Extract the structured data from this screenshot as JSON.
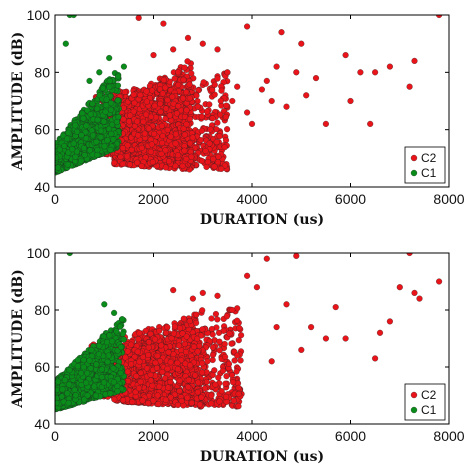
{
  "chart_data": [
    {
      "type": "scatter",
      "xlabel": "DURATION (us)",
      "ylabel": "AMPLITUDE (dB)",
      "xlim": [
        0,
        8000
      ],
      "ylim": [
        40,
        100
      ],
      "xticks": [
        0,
        2000,
        4000,
        6000,
        8000
      ],
      "yticks": [
        40,
        60,
        80,
        100
      ],
      "grid": false,
      "legend_position": "bottom-right",
      "series": [
        {
          "name": "C2",
          "color": "#e8141a",
          "points": [
            [
              7800,
              100
            ],
            [
              1700,
              99
            ],
            [
              2200,
              97
            ],
            [
              3900,
              96
            ],
            [
              4600,
              94
            ],
            [
              5000,
              90
            ],
            [
              6500,
              80
            ],
            [
              5300,
              78
            ],
            [
              5900,
              86
            ],
            [
              6800,
              82
            ],
            [
              7300,
              84
            ],
            [
              6200,
              80
            ],
            [
              7200,
              75
            ],
            [
              4500,
              82
            ],
            [
              3700,
              75
            ],
            [
              4400,
              70
            ],
            [
              5100,
              72
            ],
            [
              6000,
              70
            ],
            [
              4700,
              68
            ],
            [
              3900,
              66
            ],
            [
              5500,
              62
            ],
            [
              6400,
              62
            ],
            [
              3000,
              90
            ],
            [
              3300,
              88
            ],
            [
              2700,
              92
            ],
            [
              2400,
              88
            ],
            [
              2000,
              86
            ],
            [
              4300,
              77
            ],
            [
              3500,
              80
            ],
            [
              3600,
              70
            ],
            [
              2900,
              68
            ],
            [
              3200,
              64
            ],
            [
              4000,
              62
            ],
            [
              4200,
              74
            ],
            [
              4900,
              80
            ],
            [
              2500,
              80
            ]
          ],
          "dense_regions": [
            {
              "x_range": [
                800,
                3500
              ],
              "y_min": [
                52,
                46
              ],
              "y_max": [
                72,
                80
              ]
            },
            {
              "x_range": [
                1200,
                2800
              ],
              "y_min": [
                48,
                46
              ],
              "y_max": [
                68,
                85
              ]
            }
          ]
        },
        {
          "name": "C1",
          "color": "#0a8c1a",
          "points": [
            [
              300,
              100
            ],
            [
              380,
              100
            ],
            [
              220,
              90
            ],
            [
              1400,
              82
            ],
            [
              1100,
              85
            ],
            [
              900,
              80
            ],
            [
              700,
              77
            ]
          ],
          "dense_regions": [
            {
              "x_range": [
                0,
                1300
              ],
              "y_min": [
                45,
                54
              ],
              "y_max": [
                55,
                82
              ]
            }
          ]
        }
      ]
    },
    {
      "type": "scatter",
      "xlabel": "DURATION (us)",
      "ylabel": "AMPLITUDE (dB)",
      "xlim": [
        0,
        8000
      ],
      "ylim": [
        40,
        100
      ],
      "xticks": [
        0,
        2000,
        4000,
        6000,
        8000
      ],
      "yticks": [
        40,
        60,
        80,
        100
      ],
      "grid": false,
      "legend_position": "bottom-right",
      "series": [
        {
          "name": "C2",
          "color": "#e8141a",
          "points": [
            [
              7200,
              100
            ],
            [
              4900,
              99
            ],
            [
              4300,
              98
            ],
            [
              7300,
              86
            ],
            [
              7800,
              90
            ],
            [
              7400,
              84
            ],
            [
              7000,
              88
            ],
            [
              6800,
              76
            ],
            [
              6500,
              63
            ],
            [
              5700,
              81
            ],
            [
              6600,
              72
            ],
            [
              5200,
              74
            ],
            [
              5500,
              70
            ],
            [
              4500,
              74
            ],
            [
              4100,
              88
            ],
            [
              3900,
              92
            ],
            [
              3600,
              80
            ],
            [
              4700,
              82
            ],
            [
              3300,
              85
            ],
            [
              3000,
              86
            ],
            [
              2400,
              87
            ],
            [
              2800,
              84
            ],
            [
              5000,
              66
            ],
            [
              4400,
              62
            ],
            [
              3700,
              64
            ],
            [
              5900,
              70
            ]
          ],
          "dense_regions": [
            {
              "x_range": [
                700,
                3800
              ],
              "y_min": [
                50,
                46
              ],
              "y_max": [
                68,
                82
              ]
            },
            {
              "x_range": [
                1200,
                3000
              ],
              "y_min": [
                48,
                46
              ],
              "y_max": [
                66,
                80
              ]
            }
          ]
        },
        {
          "name": "C1",
          "color": "#0a8c1a",
          "points": [
            [
              300,
              100
            ],
            [
              1200,
              79
            ],
            [
              1000,
              82
            ]
          ],
          "dense_regions": [
            {
              "x_range": [
                0,
                1400
              ],
              "y_min": [
                45,
                52
              ],
              "y_max": [
                55,
                78
              ]
            }
          ]
        }
      ]
    }
  ]
}
